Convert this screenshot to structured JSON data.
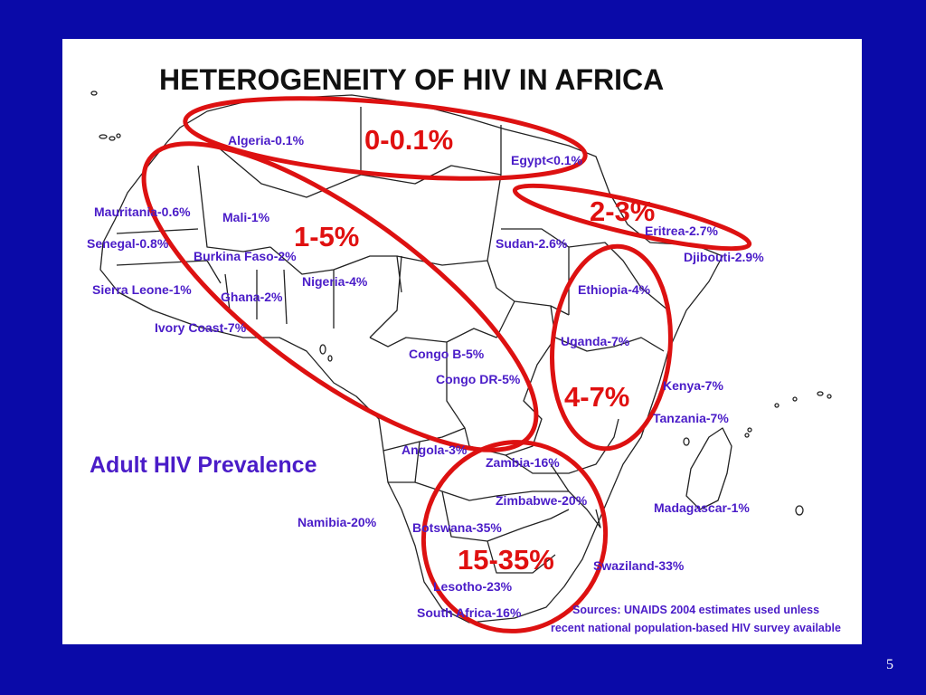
{
  "slide": {
    "title": "HETEROGENEITY OF HIV IN AFRICA",
    "legend_title": "Adult HIV Prevalence",
    "source_line1": "Sources: UNAIDS 2004 estimates used unless",
    "source_line2": "recent national population-based HIV survey available",
    "page_number": "5"
  },
  "countries": {
    "algeria": "Algeria-0.1%",
    "egypt": "Egypt<0.1%",
    "mauritania": "Mauritania-0.6%",
    "mali": "Mali-1%",
    "senegal": "Senegal-0.8%",
    "burkina_faso": "Burkina Faso-2%",
    "sierra_leone": "Sierra Leone-1%",
    "ghana": "Ghana-2%",
    "nigeria": "Nigeria-4%",
    "ivory_coast": "Ivory Coast-7%",
    "sudan": "Sudan-2.6%",
    "eritrea": "Eritrea-2.7%",
    "djibouti": "Djibouti-2.9%",
    "ethiopia": "Ethiopia-4%",
    "uganda": "Uganda-7%",
    "kenya": "Kenya-7%",
    "tanzania": "Tanzania-7%",
    "congo_b": "Congo B-5%",
    "congo_dr": "Congo DR-5%",
    "angola": "Angola-3%",
    "zambia": "Zambia-16%",
    "zimbabwe": "Zimbabwe-20%",
    "namibia": "Namibia-20%",
    "botswana": "Botswana-35%",
    "madagascar": "Madagascar-1%",
    "swaziland": "Swaziland-33%",
    "lesotho": "Lesotho-23%",
    "south_africa": "South Africa-16%"
  },
  "ranges": {
    "north": "0-0.1%",
    "west": "1-5%",
    "horn": "2-3%",
    "east": "4-7%",
    "south": "15-35%"
  },
  "colors": {
    "background": "#0a0aa8",
    "panel": "#ffffff",
    "label": "#4a1cc8",
    "oval": "#dd1111",
    "title": "#111111"
  }
}
